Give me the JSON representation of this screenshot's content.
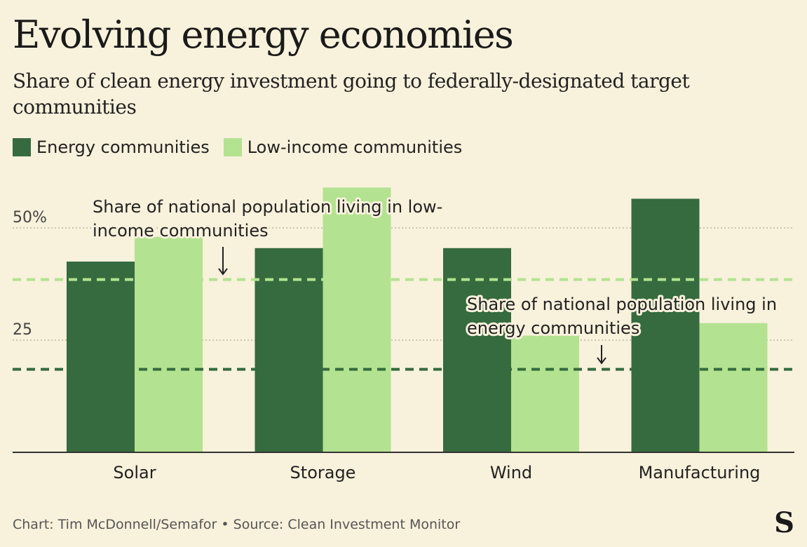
{
  "title": "Evolving energy economies",
  "subtitle": "Share of clean energy investment going to federally-designated target communities",
  "legend": [
    {
      "label": "Energy communities",
      "color": "#356b3e"
    },
    {
      "label": "Low-income communities",
      "color": "#b3e290"
    }
  ],
  "footer": "Chart: Tim McDonnell/Semafor • Source: Clean Investment Monitor",
  "logo": "S",
  "chart_data": {
    "type": "bar",
    "categories": [
      "Solar",
      "Storage",
      "Wind",
      "Manufacturing"
    ],
    "series": [
      {
        "name": "Energy communities",
        "values": [
          42.5,
          45.5,
          45.5,
          56.5
        ],
        "color": "#356b3e"
      },
      {
        "name": "Low-income communities",
        "values": [
          48,
          59,
          26,
          28.8
        ],
        "color": "#b3e290"
      }
    ],
    "ylim": [
      0,
      60
    ],
    "yticks": [
      {
        "value": 25,
        "label": "25"
      },
      {
        "value": 50,
        "label": "50%"
      }
    ],
    "reference_lines": [
      {
        "value": 38.5,
        "color": "#b3e290",
        "label": "Share of national population living in low-income communities",
        "text_lines": [
          "Share of national population living in low-",
          "income communities"
        ]
      },
      {
        "value": 18.5,
        "color": "#356b3e",
        "label": "Share of national population living in energy communities",
        "text_lines": [
          "Share of national population living in",
          "energy communities"
        ]
      }
    ]
  }
}
